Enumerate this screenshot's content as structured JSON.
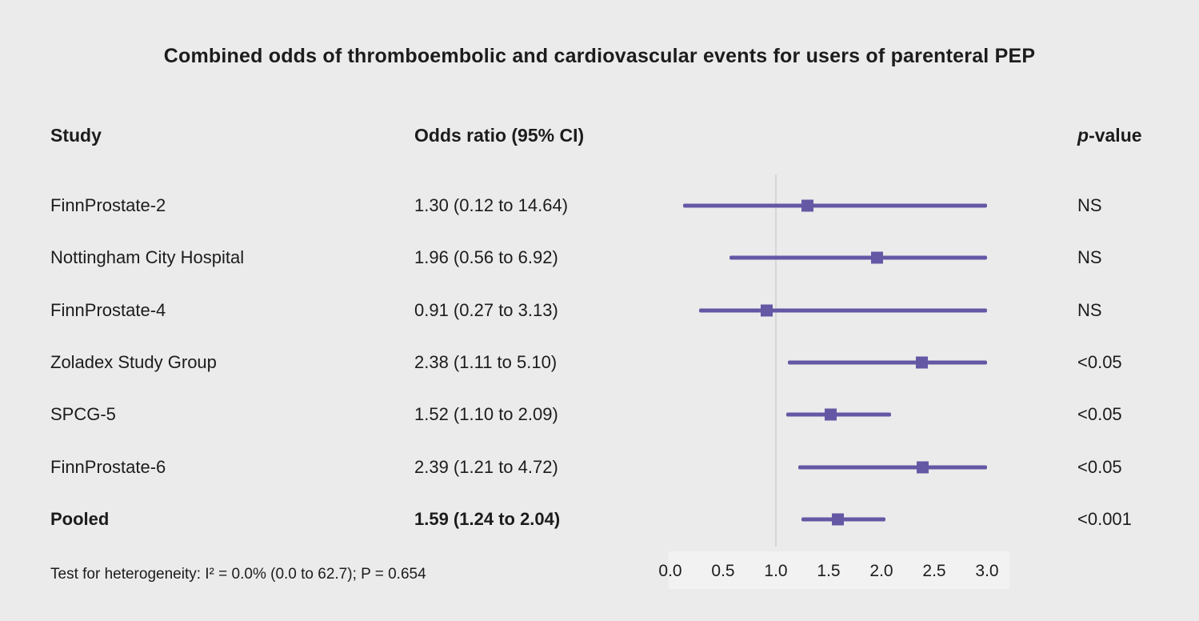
{
  "title": "Combined odds of thromboembolic and cardiovascular events for users of parenteral PEP",
  "columns": {
    "study": "Study",
    "odds_ratio": "Odds ratio (95% CI)",
    "p_italic": "p",
    "p_rest": "-value"
  },
  "footer": "Test for heterogeneity: I² = 0.0% (0.0 to 62.7); P = 0.654",
  "chart_data": {
    "type": "forest",
    "title": "Combined odds of thromboembolic and cardiovascular events for users of parenteral PEP",
    "xlabel": "",
    "ylabel": "",
    "axis": {
      "min": 0.0,
      "max": 3.0,
      "ticks": [
        0.0,
        0.5,
        1.0,
        1.5,
        2.0,
        2.5,
        3.0
      ],
      "tick_labels": [
        "0.0",
        "0.5",
        "1.0",
        "1.5",
        "2.0",
        "2.5",
        "3.0"
      ],
      "reference_line": 1.0
    },
    "rows": [
      {
        "study": "FinnProstate-2",
        "or_label": "1.30 (0.12 to 14.64)",
        "or": 1.3,
        "ci_low": 0.12,
        "ci_high": 14.64,
        "p": "NS",
        "bold": false
      },
      {
        "study": "Nottingham City Hospital",
        "or_label": "1.96 (0.56 to 6.92)",
        "or": 1.96,
        "ci_low": 0.56,
        "ci_high": 6.92,
        "p": "NS",
        "bold": false
      },
      {
        "study": "FinnProstate-4",
        "or_label": "0.91 (0.27 to 3.13)",
        "or": 0.91,
        "ci_low": 0.27,
        "ci_high": 3.13,
        "p": "NS",
        "bold": false
      },
      {
        "study": "Zoladex Study Group",
        "or_label": "2.38 (1.11 to 5.10)",
        "or": 2.38,
        "ci_low": 1.11,
        "ci_high": 5.1,
        "p": "<0.05",
        "bold": false
      },
      {
        "study": "SPCG-5",
        "or_label": "1.52 (1.10 to 2.09)",
        "or": 1.52,
        "ci_low": 1.1,
        "ci_high": 2.09,
        "p": "<0.05",
        "bold": false
      },
      {
        "study": "FinnProstate-6",
        "or_label": "2.39 (1.21 to 4.72)",
        "or": 2.39,
        "ci_low": 1.21,
        "ci_high": 4.72,
        "p": "<0.05",
        "bold": false
      },
      {
        "study": "Pooled",
        "or_label": "1.59 (1.24 to 2.04)",
        "or": 1.59,
        "ci_low": 1.24,
        "ci_high": 2.04,
        "p": "<0.001",
        "bold": true
      }
    ],
    "colors": {
      "accent": "#6458a5",
      "background": "#ebebeb",
      "reference_line": "#d6d6d6",
      "axis_strip": "#f2f2f2"
    },
    "legend": null,
    "grid": false
  }
}
